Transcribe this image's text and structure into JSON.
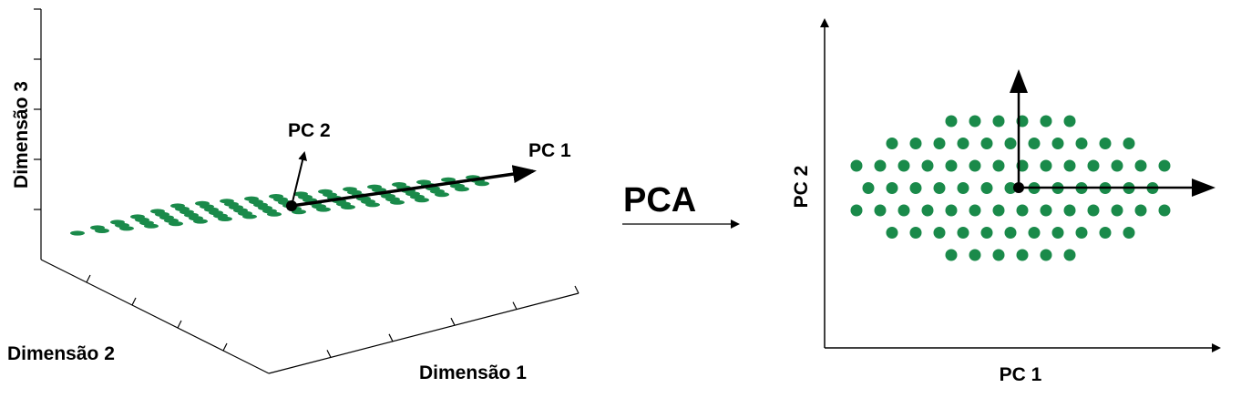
{
  "left_plot": {
    "axis_labels": {
      "z": "Dimensão 3",
      "y": "Dimensão 2",
      "x": "Dimensão 1"
    },
    "vector_labels": {
      "pc2": "PC 2",
      "pc1": "PC 1"
    }
  },
  "transform_label": "PCA",
  "right_plot": {
    "y_label": "PC 2",
    "x_label": "PC 1"
  }
}
